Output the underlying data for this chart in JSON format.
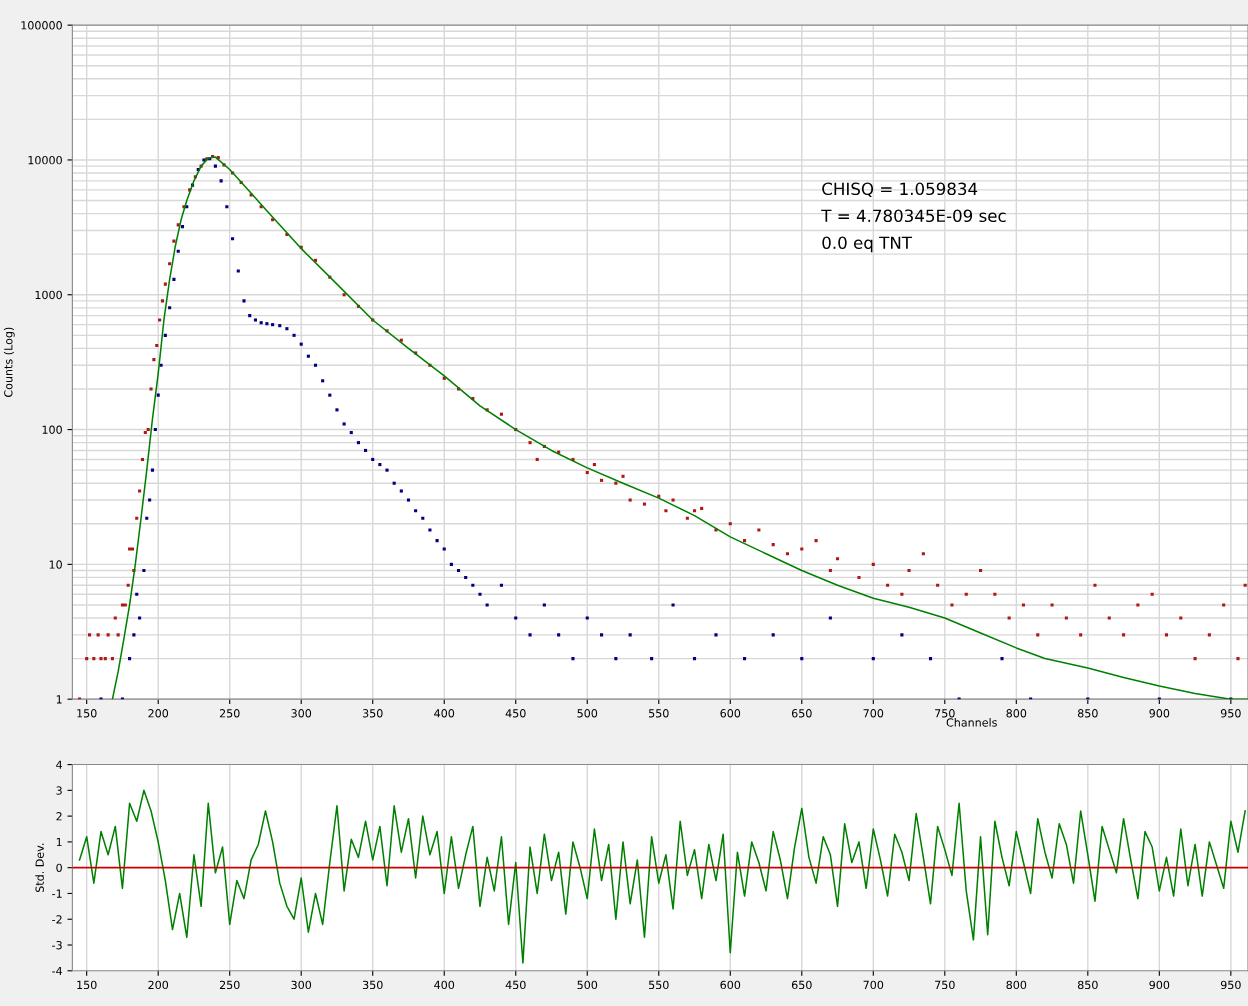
{
  "chart_data": [
    {
      "type": "scatter",
      "xlabel": "Channels",
      "ylabel": "Counts (Log)",
      "log": "y",
      "grid": true,
      "legend": false,
      "xlim": [
        140,
        962
      ],
      "xticks": [
        150,
        200,
        250,
        300,
        350,
        400,
        450,
        500,
        550,
        600,
        650,
        700,
        750,
        800,
        850,
        900,
        950
      ],
      "ylim": [
        1,
        100000
      ],
      "yticks": [
        1,
        10,
        100,
        1000,
        10000,
        100000
      ],
      "annotations": [
        "CHISQ = 1.059834",
        "T = 4.780345E-09 sec",
        "0.0 eq TNT"
      ],
      "series": [
        {
          "marker": "square",
          "color": "#b01818",
          "x": [
            145,
            150,
            152,
            155,
            158,
            160,
            163,
            165,
            168,
            170,
            172,
            175,
            177,
            179,
            180,
            182,
            183,
            185,
            187,
            189,
            191,
            193,
            195,
            197,
            199,
            201,
            203,
            205,
            208,
            211,
            214,
            218,
            222,
            226,
            230,
            234,
            238,
            242,
            246,
            252,
            258,
            265,
            272,
            280,
            290,
            300,
            310,
            320,
            330,
            340,
            350,
            360,
            370,
            380,
            390,
            400,
            410,
            420,
            430,
            440,
            450,
            460,
            465,
            470,
            480,
            490,
            500,
            505,
            510,
            520,
            525,
            530,
            540,
            550,
            555,
            560,
            570,
            575,
            580,
            590,
            600,
            610,
            620,
            630,
            640,
            650,
            660,
            670,
            675,
            690,
            700,
            710,
            720,
            725,
            735,
            745,
            755,
            765,
            775,
            785,
            795,
            805,
            815,
            825,
            835,
            845,
            855,
            865,
            875,
            885,
            895,
            905,
            915,
            925,
            935,
            945,
            955,
            960
          ],
          "values": [
            1,
            2,
            3,
            2,
            3,
            2,
            2,
            3,
            2,
            4,
            3,
            5,
            5,
            7,
            13,
            13,
            9,
            22,
            35,
            60,
            95,
            100,
            200,
            330,
            420,
            650,
            900,
            1200,
            1700,
            2500,
            3300,
            4500,
            6000,
            7500,
            9000,
            10200,
            10600,
            10400,
            9200,
            8000,
            6800,
            5500,
            4500,
            3600,
            2800,
            2250,
            1800,
            1350,
            1000,
            820,
            650,
            540,
            460,
            370,
            300,
            240,
            200,
            170,
            140,
            130,
            100,
            80,
            60,
            75,
            68,
            60,
            48,
            55,
            42,
            40,
            45,
            30,
            28,
            32,
            25,
            30,
            22,
            25,
            26,
            18,
            20,
            15,
            18,
            14,
            12,
            13,
            15,
            9,
            11,
            8,
            10,
            7,
            6,
            9,
            12,
            7,
            5,
            6,
            9,
            6,
            4,
            5,
            3,
            5,
            4,
            3,
            7,
            4,
            3,
            5,
            6,
            3,
            4,
            2,
            3,
            5,
            2,
            7
          ]
        },
        {
          "marker": "square",
          "color": "#000080",
          "x": [
            160,
            175,
            180,
            183,
            185,
            187,
            190,
            192,
            194,
            196,
            198,
            200,
            202,
            205,
            208,
            211,
            214,
            217,
            220,
            224,
            228,
            232,
            236,
            240,
            244,
            248,
            252,
            256,
            260,
            264,
            268,
            272,
            276,
            280,
            285,
            290,
            295,
            300,
            305,
            310,
            315,
            320,
            325,
            330,
            335,
            340,
            345,
            350,
            355,
            360,
            365,
            370,
            375,
            380,
            385,
            390,
            395,
            400,
            405,
            410,
            415,
            420,
            425,
            430,
            440,
            450,
            460,
            470,
            480,
            490,
            500,
            510,
            520,
            530,
            545,
            560,
            575,
            590,
            610,
            630,
            650,
            670,
            700,
            720,
            740,
            760,
            790,
            810,
            850,
            900,
            950
          ],
          "values": [
            1,
            1,
            2,
            3,
            6,
            4,
            9,
            22,
            30,
            50,
            100,
            180,
            300,
            500,
            800,
            1300,
            2100,
            3200,
            4500,
            6500,
            8500,
            10000,
            10200,
            9000,
            7000,
            4500,
            2600,
            1500,
            900,
            700,
            650,
            620,
            610,
            600,
            590,
            560,
            500,
            430,
            350,
            300,
            230,
            180,
            140,
            110,
            95,
            80,
            70,
            60,
            55,
            50,
            40,
            35,
            30,
            25,
            22,
            18,
            15,
            13,
            10,
            9,
            8,
            7,
            6,
            5,
            7,
            4,
            3,
            5,
            3,
            2,
            4,
            3,
            2,
            3,
            2,
            5,
            2,
            3,
            2,
            3,
            2,
            4,
            2,
            3,
            2,
            1,
            2,
            1,
            1,
            1,
            1
          ]
        },
        {
          "type": "line",
          "marker": "none",
          "color": "#008000",
          "x": [
            168,
            172,
            176,
            180,
            184,
            188,
            192,
            196,
            200,
            204,
            208,
            212,
            216,
            220,
            225,
            230,
            235,
            240,
            250,
            260,
            275,
            300,
            325,
            350,
            375,
            400,
            425,
            450,
            475,
            500,
            525,
            550,
            575,
            600,
            625,
            650,
            675,
            700,
            725,
            750,
            775,
            800,
            820,
            850,
            875,
            900,
            925,
            950,
            962
          ],
          "values": [
            1,
            1.6,
            2.8,
            5,
            10,
            22,
            50,
            120,
            260,
            650,
            1300,
            2300,
            3600,
            5000,
            7000,
            9000,
            10300,
            10500,
            8500,
            6500,
            4300,
            2200,
            1200,
            650,
            400,
            250,
            150,
            100,
            70,
            52,
            40,
            31,
            23,
            16,
            12,
            9,
            7,
            5.6,
            4.8,
            4.0,
            3.1,
            2.4,
            2.0,
            1.7,
            1.45,
            1.25,
            1.1,
            1.0,
            1.0
          ]
        }
      ]
    },
    {
      "type": "line",
      "ylabel": "Std. Dev.",
      "grid": "x",
      "legend": false,
      "xlim": [
        140,
        962
      ],
      "xticks": [
        150,
        200,
        250,
        300,
        350,
        400,
        450,
        500,
        550,
        600,
        650,
        700,
        750,
        800,
        850,
        900,
        950
      ],
      "ylim": [
        -4,
        4
      ],
      "yticks": [
        -4,
        -3,
        -2,
        -1,
        0,
        1,
        2,
        3,
        4
      ],
      "ref_lines": [
        {
          "axis": "y",
          "value": 0,
          "color": "#cc0000"
        }
      ],
      "series": [
        {
          "marker": "none",
          "color": "#008000",
          "x": [
            145,
            150,
            155,
            160,
            165,
            170,
            175,
            180,
            185,
            190,
            195,
            200,
            205,
            210,
            215,
            220,
            225,
            230,
            235,
            240,
            245,
            250,
            255,
            260,
            265,
            270,
            275,
            280,
            285,
            290,
            295,
            300,
            305,
            310,
            315,
            320,
            325,
            330,
            335,
            340,
            345,
            350,
            355,
            360,
            365,
            370,
            375,
            380,
            385,
            390,
            395,
            400,
            405,
            410,
            415,
            420,
            425,
            430,
            435,
            440,
            445,
            450,
            455,
            460,
            465,
            470,
            475,
            480,
            485,
            490,
            495,
            500,
            505,
            510,
            515,
            520,
            525,
            530,
            535,
            540,
            545,
            550,
            555,
            560,
            565,
            570,
            575,
            580,
            585,
            590,
            595,
            600,
            605,
            610,
            615,
            620,
            625,
            630,
            635,
            640,
            645,
            650,
            655,
            660,
            665,
            670,
            675,
            680,
            685,
            690,
            695,
            700,
            705,
            710,
            715,
            720,
            725,
            730,
            735,
            740,
            745,
            750,
            755,
            760,
            765,
            770,
            775,
            780,
            785,
            790,
            795,
            800,
            805,
            810,
            815,
            820,
            825,
            830,
            835,
            840,
            845,
            850,
            855,
            860,
            865,
            870,
            875,
            880,
            885,
            890,
            895,
            900,
            905,
            910,
            915,
            920,
            925,
            930,
            935,
            940,
            945,
            950,
            955,
            960
          ],
          "values": [
            0.3,
            1.2,
            -0.6,
            1.4,
            0.5,
            1.6,
            -0.8,
            2.5,
            1.8,
            3.0,
            2.2,
            1.0,
            -0.5,
            -2.4,
            -1.0,
            -2.7,
            0.5,
            -1.5,
            2.5,
            -0.2,
            0.8,
            -2.2,
            -0.5,
            -1.2,
            0.3,
            0.9,
            2.2,
            1.0,
            -0.6,
            -1.5,
            -2.0,
            -0.4,
            -2.5,
            -1.0,
            -2.2,
            0.2,
            2.4,
            -0.9,
            1.1,
            0.4,
            1.8,
            0.3,
            1.6,
            -0.7,
            2.4,
            0.6,
            1.9,
            -0.4,
            2.0,
            0.5,
            1.4,
            -1.0,
            1.2,
            -0.8,
            0.5,
            1.6,
            -1.5,
            0.4,
            -0.9,
            1.2,
            -2.2,
            0.2,
            -3.7,
            0.8,
            -1.0,
            1.3,
            -0.5,
            0.6,
            -1.8,
            1.0,
            0.0,
            -1.2,
            1.5,
            -0.5,
            0.9,
            -2.0,
            1.0,
            -1.4,
            0.3,
            -2.7,
            1.2,
            -0.6,
            0.5,
            -1.6,
            1.8,
            -0.3,
            0.7,
            -1.2,
            0.9,
            -0.5,
            1.3,
            -3.3,
            0.6,
            -1.1,
            1.0,
            0.2,
            -0.9,
            1.4,
            0.3,
            -1.2,
            0.8,
            2.3,
            0.4,
            -0.6,
            1.2,
            0.5,
            -1.5,
            1.7,
            0.2,
            1.0,
            -0.8,
            1.5,
            0.3,
            -1.1,
            1.3,
            0.6,
            -0.5,
            2.1,
            0.4,
            -1.4,
            1.6,
            0.7,
            -0.3,
            2.5,
            -0.9,
            -2.8,
            1.2,
            -2.6,
            1.8,
            0.4,
            -0.7,
            1.4,
            0.2,
            -1.0,
            1.9,
            0.6,
            -0.4,
            1.7,
            0.9,
            -0.6,
            2.2,
            0.5,
            -1.3,
            1.6,
            0.7,
            -0.2,
            1.9,
            0.3,
            -1.2,
            1.4,
            0.8,
            -0.9,
            0.4,
            -1.1,
            1.5,
            -0.7,
            0.9,
            -1.1,
            1.0,
            0.1,
            -0.8,
            1.8,
            0.6,
            2.2
          ]
        }
      ]
    }
  ]
}
